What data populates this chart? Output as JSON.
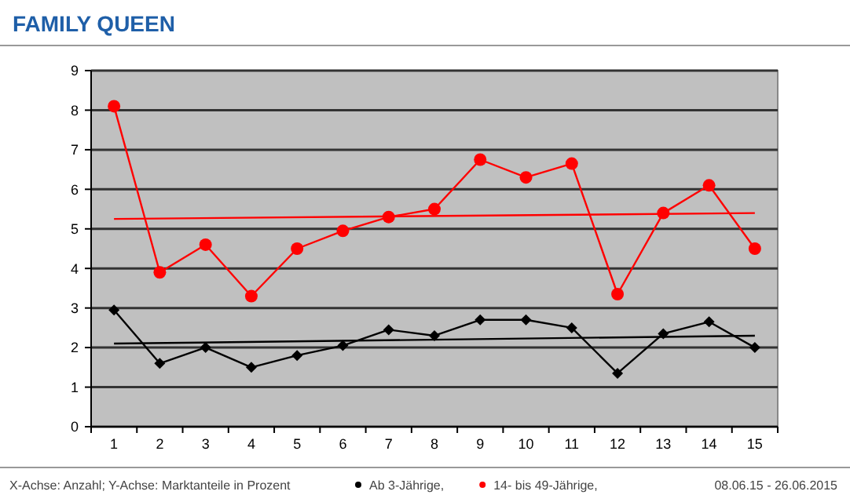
{
  "chart_data": {
    "type": "line",
    "title": "FAMILY QUEEN",
    "categories": [
      "1",
      "2",
      "3",
      "4",
      "5",
      "6",
      "7",
      "8",
      "9",
      "10",
      "11",
      "12",
      "13",
      "14",
      "15"
    ],
    "series": [
      {
        "name": "Ab 3-Jährige,",
        "color": "#000000",
        "marker": "diamond",
        "values": [
          2.95,
          1.6,
          2.0,
          1.5,
          1.8,
          2.05,
          2.45,
          2.3,
          2.7,
          2.7,
          2.5,
          1.35,
          2.35,
          2.65,
          2.0
        ]
      },
      {
        "name": "14- bis 49-Jährige,",
        "color": "#ff0000",
        "marker": "circle",
        "values": [
          8.1,
          3.9,
          4.6,
          3.3,
          4.5,
          4.95,
          5.3,
          5.5,
          6.75,
          6.3,
          6.65,
          3.35,
          5.4,
          6.1,
          4.5
        ]
      },
      {
        "type": "line",
        "color": "#000000",
        "marker": "none",
        "x": [
          "1",
          "15"
        ],
        "values": [
          2.1,
          2.3
        ]
      },
      {
        "type": "line",
        "color": "#ff0000",
        "marker": "none",
        "x": [
          "1",
          "15"
        ],
        "values": [
          5.25,
          5.4
        ]
      }
    ],
    "ylim": [
      0,
      9
    ],
    "yticks": [
      0,
      1,
      2,
      3,
      4,
      5,
      6,
      7,
      8,
      9
    ],
    "grid": "y",
    "legend": "bottom",
    "annotations": [
      "X-Achse: Anzahl; Y-Achse: Marktanteile in Prozent",
      "08.06.15 - 26.06.2015"
    ]
  }
}
